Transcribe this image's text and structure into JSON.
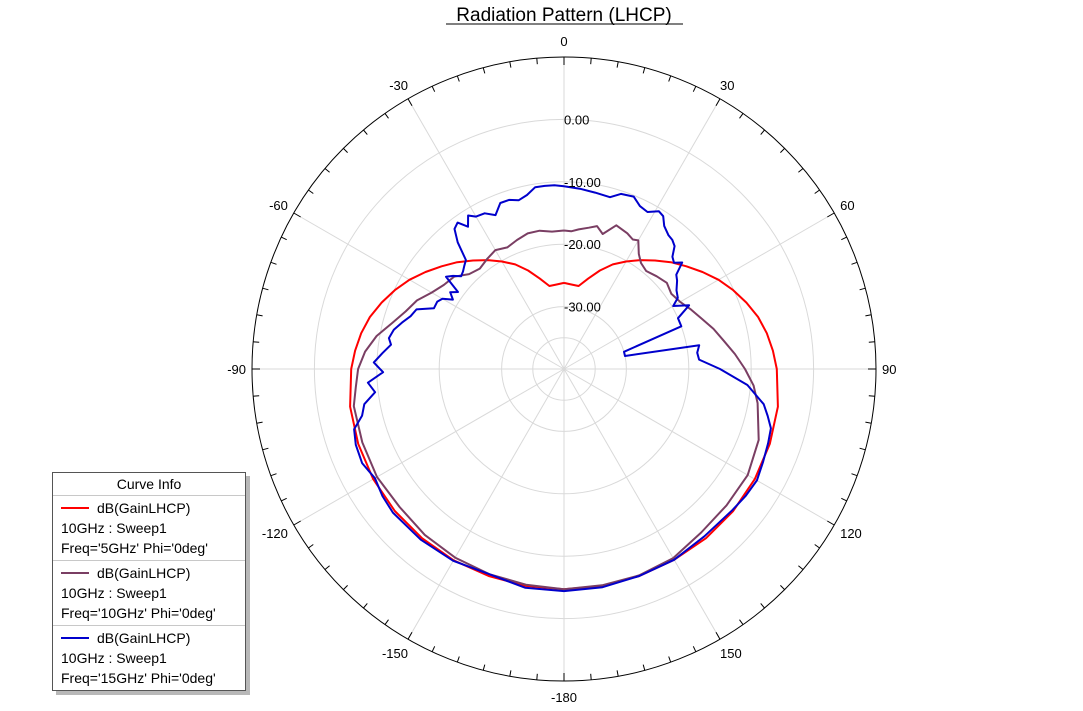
{
  "chart_data": {
    "type": "polar-line",
    "title": "Radiation Pattern (LHCP)",
    "angle_ticks": [
      "0",
      "30",
      "60",
      "90",
      "120",
      "150",
      "-180",
      "-150",
      "-120",
      "-90",
      "-60",
      "-30"
    ],
    "angle_tick_values": [
      0,
      30,
      60,
      90,
      120,
      150,
      180,
      -150,
      -120,
      -90,
      -60,
      -30
    ],
    "radial_ticks": [
      "0.00",
      "-10.00",
      "-20.00",
      "-30.00"
    ],
    "radial_tick_values": [
      0,
      -10,
      -20,
      -30
    ],
    "rlim": [
      -40,
      10
    ],
    "angle_unit": "deg",
    "legend": {
      "title": "Curve Info",
      "placement": "bottom-left",
      "entries": [
        {
          "label": "dB(GainLHCP)",
          "line2": "10GHz : Sweep1",
          "line3": "Freq='5GHz' Phi='0deg'",
          "color": "#ff0000"
        },
        {
          "label": "dB(GainLHCP)",
          "line2": "10GHz : Sweep1",
          "line3": "Freq='10GHz' Phi='0deg'",
          "color": "#7a3e63"
        },
        {
          "label": "dB(GainLHCP)",
          "line2": "10GHz : Sweep1",
          "line3": "Freq='15GHz' Phi='0deg'",
          "color": "#0000cc"
        }
      ]
    },
    "series": [
      {
        "legend_index": 0,
        "color": "#ff0000",
        "theta": [
          0,
          5,
          10,
          15,
          20,
          25,
          30,
          35,
          40,
          45,
          50,
          55,
          60,
          65,
          70,
          75,
          80,
          85,
          90,
          100,
          110,
          120,
          130,
          140,
          150,
          160,
          170,
          180,
          -170,
          -160,
          -150,
          -140,
          -130,
          -120,
          -110,
          -100,
          -90,
          -85,
          -80,
          -75,
          -70,
          -65,
          -60,
          -55,
          -50,
          -45,
          -40,
          -35,
          -30,
          -25,
          -20,
          -15,
          -10,
          -5,
          0
        ],
        "r": [
          -26.2,
          -26.4,
          -26.5,
          -25,
          -23.2,
          -21.5,
          -20.1,
          -18.7,
          -17.3,
          -15.8,
          -14.4,
          -12.9,
          -11.4,
          -10.1,
          -8.9,
          -7.8,
          -7.0,
          -6.4,
          -5.9,
          -5.2,
          -4.9,
          -4.7,
          -4.6,
          -4.6,
          -4.7,
          -4.7,
          -4.7,
          -4.7,
          -4.7,
          -4.7,
          -4.6,
          -4.6,
          -4.6,
          -4.7,
          -4.9,
          -5.2,
          -5.9,
          -6.4,
          -7.0,
          -7.8,
          -8.9,
          -10.1,
          -11.4,
          -12.9,
          -14.4,
          -15.8,
          -17.3,
          -18.7,
          -20.1,
          -21.5,
          -23.2,
          -25,
          -26.5,
          -26.4,
          -26.2
        ]
      },
      {
        "legend_index": 1,
        "color": "#7a3e63",
        "theta": [
          0,
          3,
          6,
          10,
          13,
          16,
          20,
          25,
          28,
          30,
          33,
          36,
          40,
          45,
          50,
          55,
          60,
          65,
          70,
          75,
          80,
          85,
          90,
          95,
          100,
          110,
          120,
          130,
          140,
          150,
          160,
          170,
          180,
          -170,
          -160,
          -150,
          -140,
          -130,
          -120,
          -110,
          -100,
          -95,
          -90,
          -85,
          -80,
          -75,
          -70,
          -65,
          -60,
          -55,
          -50,
          -45,
          -40,
          -35,
          -30,
          -25,
          -20,
          -15,
          -10,
          -5,
          0
        ],
        "r": [
          -17.8,
          -17.9,
          -17.5,
          -17.0,
          -16.5,
          -17.5,
          -15.5,
          -16.0,
          -16.5,
          -16.2,
          -18.0,
          -19.0,
          -19.5,
          -19.0,
          -18.5,
          -19.0,
          -18.5,
          -17.5,
          -16.5,
          -15.2,
          -14.0,
          -12.5,
          -11.0,
          -9.5,
          -8.5,
          -6.8,
          -6.0,
          -6.0,
          -5.8,
          -5.0,
          -4.8,
          -4.8,
          -4.7,
          -4.9,
          -5.0,
          -5.1,
          -5.3,
          -5.6,
          -5.4,
          -5.6,
          -5.8,
          -6.5,
          -7.0,
          -8.0,
          -9.5,
          -11.5,
          -13.0,
          -14.0,
          -15.5,
          -16.5,
          -17.0,
          -18.5,
          -19.0,
          -18.5,
          -18.0,
          -18.5,
          -18.0,
          -17.5,
          -17.5,
          -17.9,
          -17.8
        ]
      },
      {
        "legend_index": 2,
        "color": "#0000cc",
        "theta": [
          0,
          5,
          10,
          15,
          18,
          22,
          25,
          28,
          31,
          33,
          35,
          38,
          40,
          42,
          44,
          46,
          48,
          50,
          52,
          55,
          58,
          60,
          63,
          66,
          70,
          74,
          78,
          80,
          83,
          86,
          90,
          95,
          100,
          103,
          106,
          110,
          115,
          120,
          125,
          130,
          140,
          150,
          160,
          170,
          180,
          -170,
          -160,
          -150,
          -140,
          -130,
          -125,
          -120,
          -115,
          -110,
          -106,
          -103,
          -100,
          -97,
          -94,
          -91,
          -88,
          -85,
          -82,
          -80,
          -77,
          -74,
          -71,
          -68,
          -65,
          -62,
          -60,
          -58,
          -56,
          -54,
          -52,
          -50,
          -48,
          -46,
          -44,
          -42,
          -40,
          -38,
          -36,
          -34,
          -32,
          -30,
          -27,
          -24,
          -21,
          -18,
          -15,
          -12,
          -9,
          -6,
          -3,
          0
        ],
        "r": [
          -10.7,
          -11.0,
          -11.3,
          -11.5,
          -10.5,
          -10.2,
          -11.2,
          -11.5,
          -10.5,
          -10.8,
          -12.0,
          -12.8,
          -13.0,
          -13.5,
          -15.0,
          -15.5,
          -14.5,
          -16.5,
          -17.0,
          -18.0,
          -18.5,
          -19.8,
          -17.5,
          -20.0,
          -20.0,
          -30.0,
          -30.0,
          -18.0,
          -18.5,
          -18.3,
          -15.0,
          -10.5,
          -7.5,
          -6.5,
          -5.5,
          -5.2,
          -4.8,
          -4.3,
          -4.5,
          -4.8,
          -5.0,
          -4.7,
          -4.7,
          -4.5,
          -4.4,
          -4.4,
          -5.0,
          -4.5,
          -4.3,
          -4.2,
          -4.5,
          -5.0,
          -4.3,
          -4.5,
          -5.0,
          -6.8,
          -7.5,
          -9.5,
          -8.5,
          -11.0,
          -9.5,
          -10.8,
          -12.0,
          -11.5,
          -12.0,
          -13.0,
          -14.0,
          -14.5,
          -17.0,
          -17.0,
          -17.5,
          -19.0,
          -18.0,
          -19.0,
          -16.0,
          -16.8,
          -17.8,
          -17.5,
          -17.0,
          -16.5,
          -13.5,
          -11.5,
          -11.0,
          -12.5,
          -11.0,
          -11.8,
          -12.0,
          -13.0,
          -11.5,
          -11.5,
          -12.0,
          -11.5,
          -10.5,
          -10.5,
          -10.5,
          -10.7
        ]
      }
    ]
  }
}
